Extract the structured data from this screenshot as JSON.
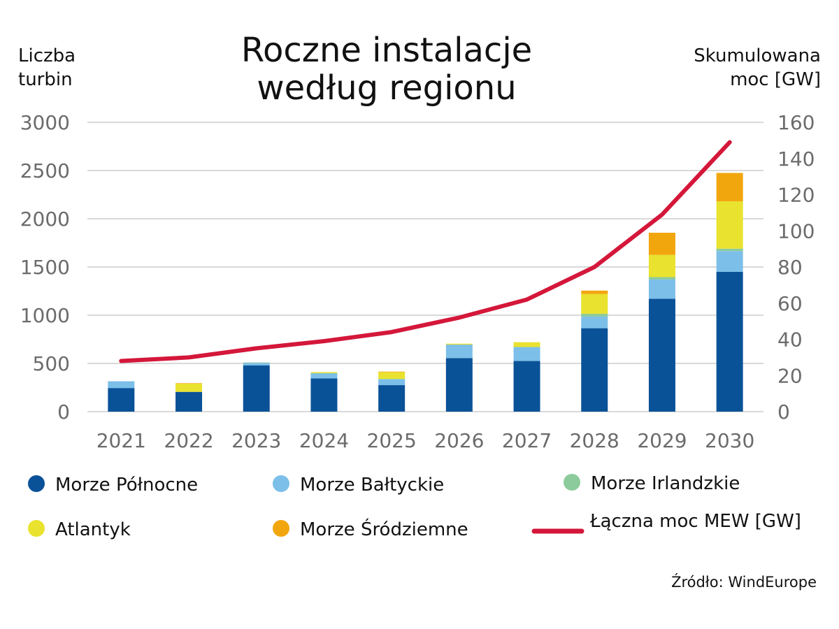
{
  "chart_data": {
    "type": "bar",
    "stacked": true,
    "title_lines": [
      "Roczne instalacje",
      "według regionu"
    ],
    "y_left_label_lines": [
      "Liczba",
      "turbin"
    ],
    "y_right_label_lines": [
      "Skumulowana",
      "moc [GW]"
    ],
    "categories": [
      "2021",
      "2022",
      "2023",
      "2024",
      "2025",
      "2026",
      "2027",
      "2028",
      "2029",
      "2030"
    ],
    "ylim_left": [
      0,
      3000
    ],
    "yticks_left": [
      "0",
      "500",
      "1000",
      "1500",
      "2000",
      "2500",
      "3000"
    ],
    "ylim_right": [
      0,
      160
    ],
    "yticks_right": [
      "0",
      "20",
      "40",
      "60",
      "80",
      "100",
      "120",
      "140",
      "160"
    ],
    "grid": true,
    "legend_position": "bottom",
    "series": [
      {
        "name": "Morze Północne",
        "axis": "left",
        "kind": "bar",
        "color": "#0a5298",
        "values": [
          245,
          205,
          480,
          345,
          275,
          555,
          525,
          865,
          1170,
          1450
        ]
      },
      {
        "name": "Morze Bałtyckie",
        "axis": "left",
        "kind": "bar",
        "color": "#7cbfe9",
        "values": [
          70,
          0,
          25,
          50,
          60,
          140,
          145,
          120,
          200,
          215
        ]
      },
      {
        "name": "Morze Irlandzkie",
        "axis": "left",
        "kind": "bar",
        "color": "#8ccb9c",
        "values": [
          0,
          0,
          5,
          5,
          5,
          0,
          0,
          30,
          25,
          25
        ]
      },
      {
        "name": "Atlantyk",
        "axis": "left",
        "kind": "bar",
        "color": "#e9e22f",
        "values": [
          0,
          85,
          0,
          10,
          70,
          10,
          50,
          205,
          230,
          490
        ]
      },
      {
        "name": "Morze Śródziemne",
        "axis": "left",
        "kind": "bar",
        "color": "#f2a60e",
        "values": [
          0,
          5,
          0,
          0,
          5,
          0,
          0,
          35,
          230,
          295
        ]
      },
      {
        "name": "Łączna moc MEW [GW]",
        "axis": "right",
        "kind": "line",
        "color": "#d4173a",
        "values": [
          28,
          30,
          35,
          39,
          44,
          52,
          62,
          80,
          109,
          149
        ]
      }
    ]
  },
  "source_label": "Źródło: WindEurope"
}
